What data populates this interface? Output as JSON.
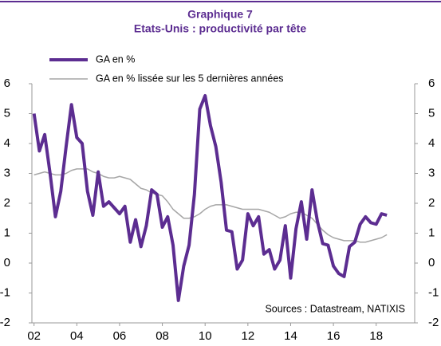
{
  "chart_data": {
    "type": "line",
    "title": "Graphique 7",
    "subtitle": "Etats-Unis : productivité par tête",
    "annotation": "Sources : Datastream, NATIXIS",
    "x": [
      2002,
      2002.25,
      2002.5,
      2002.75,
      2003,
      2003.25,
      2003.5,
      2003.75,
      2004,
      2004.25,
      2004.5,
      2004.75,
      2005,
      2005.25,
      2005.5,
      2005.75,
      2006,
      2006.25,
      2006.5,
      2006.75,
      2007,
      2007.25,
      2007.5,
      2007.75,
      2008,
      2008.25,
      2008.5,
      2008.75,
      2009,
      2009.25,
      2009.5,
      2009.75,
      2010,
      2010.25,
      2010.5,
      2010.75,
      2011,
      2011.25,
      2011.5,
      2011.75,
      2012,
      2012.25,
      2012.5,
      2012.75,
      2013,
      2013.25,
      2013.5,
      2013.75,
      2014,
      2014.25,
      2014.5,
      2014.75,
      2015,
      2015.25,
      2015.5,
      2015.75,
      2016,
      2016.25,
      2016.5,
      2016.75,
      2017,
      2017.25,
      2017.5,
      2017.75,
      2018,
      2018.25,
      2018.5
    ],
    "series": [
      {
        "name": "GA en %",
        "color": "#5c2d91",
        "width": 4,
        "values": [
          5.0,
          3.75,
          4.3,
          3.0,
          1.55,
          2.4,
          3.9,
          5.3,
          4.2,
          4.0,
          2.4,
          1.6,
          3.05,
          1.9,
          2.05,
          1.85,
          1.65,
          1.9,
          0.7,
          1.45,
          0.55,
          1.25,
          2.45,
          2.3,
          1.2,
          1.55,
          0.6,
          -1.25,
          -0.1,
          0.6,
          2.3,
          5.15,
          5.6,
          4.6,
          3.9,
          2.7,
          1.1,
          1.05,
          -0.2,
          0.1,
          1.65,
          1.25,
          1.55,
          0.3,
          0.45,
          -0.2,
          0.1,
          1.25,
          -0.5,
          1.15,
          2.05,
          0.8,
          2.45,
          1.4,
          0.65,
          0.6,
          -0.1,
          -0.35,
          -0.45,
          0.55,
          0.7,
          1.3,
          1.55,
          1.35,
          1.3,
          1.65,
          1.6
        ]
      },
      {
        "name": "GA en % lissée sur les 5 dernières années",
        "color": "#a6a6a6",
        "width": 1.5,
        "values": [
          2.95,
          3.0,
          3.05,
          3.0,
          2.95,
          2.95,
          3.0,
          3.1,
          3.15,
          3.15,
          3.15,
          3.05,
          3.0,
          2.9,
          2.85,
          2.85,
          2.9,
          2.85,
          2.8,
          2.65,
          2.5,
          2.45,
          2.35,
          2.3,
          2.25,
          2.05,
          1.8,
          1.65,
          1.5,
          1.5,
          1.55,
          1.65,
          1.8,
          1.9,
          1.95,
          1.95,
          1.95,
          1.9,
          1.85,
          1.8,
          1.8,
          1.8,
          1.8,
          1.75,
          1.7,
          1.6,
          1.5,
          1.55,
          1.65,
          1.7,
          1.7,
          1.6,
          1.5,
          1.3,
          1.1,
          0.95,
          0.85,
          0.8,
          0.75,
          0.75,
          0.75,
          0.7,
          0.7,
          0.75,
          0.8,
          0.85,
          0.95
        ]
      }
    ],
    "xlim": [
      2001.9,
      2019.8
    ],
    "xticks": [
      {
        "value": 2002,
        "label": "02"
      },
      {
        "value": 2004,
        "label": "04"
      },
      {
        "value": 2006,
        "label": "06"
      },
      {
        "value": 2008,
        "label": "08"
      },
      {
        "value": 2010,
        "label": "10"
      },
      {
        "value": 2012,
        "label": "12"
      },
      {
        "value": 2014,
        "label": "14"
      },
      {
        "value": 2016,
        "label": "16"
      },
      {
        "value": 2018,
        "label": "18"
      }
    ],
    "ylim": [
      -2,
      6
    ],
    "yticks": [
      -2,
      -1,
      0,
      1,
      2,
      3,
      4,
      5,
      6
    ],
    "y2lim": [
      -2,
      6
    ],
    "y2ticks": [
      -2,
      -1,
      0,
      1,
      2,
      3,
      4,
      5,
      6
    ],
    "legend": "top-left",
    "grid": false
  }
}
